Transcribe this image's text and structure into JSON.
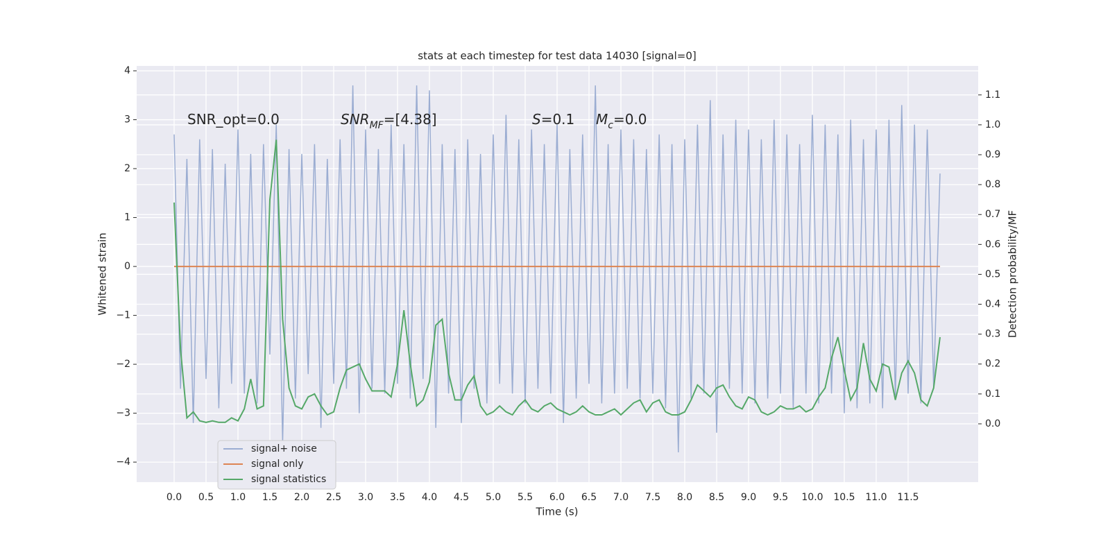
{
  "chart_data": {
    "type": "line",
    "title": "stats at each timestep for test data 14030 [signal=0]",
    "x_label": "Time (s)",
    "y_label": "Whitened strain",
    "y2_label": "Detection probability/MF",
    "annotations": [
      {
        "parts": [
          {
            "text": "SNR_opt=0.0"
          }
        ]
      },
      {
        "parts": [
          {
            "text": "SNR",
            "style": "italic"
          },
          {
            "text": "MF",
            "style": "italic-sub"
          },
          {
            "text": "=[4.38]"
          }
        ]
      },
      {
        "parts": [
          {
            "text": "S",
            "style": "italic"
          },
          {
            "text": "=0.1"
          }
        ]
      },
      {
        "parts": [
          {
            "text": "M",
            "style": "italic"
          },
          {
            "text": "c",
            "style": "italic-sub"
          },
          {
            "text": "=0.0"
          }
        ]
      }
    ],
    "x": [
      0.0,
      0.1,
      0.2,
      0.3,
      0.4,
      0.5,
      0.6,
      0.7,
      0.8,
      0.9,
      1.0,
      1.1,
      1.2,
      1.3,
      1.4,
      1.5,
      1.6,
      1.7,
      1.8,
      1.9,
      2.0,
      2.1,
      2.2,
      2.3,
      2.4,
      2.5,
      2.6,
      2.7,
      2.8,
      2.9,
      3.0,
      3.1,
      3.2,
      3.3,
      3.4,
      3.5,
      3.6,
      3.7,
      3.8,
      3.9,
      4.0,
      4.1,
      4.2,
      4.3,
      4.4,
      4.5,
      4.6,
      4.7,
      4.8,
      4.9,
      5.0,
      5.1,
      5.2,
      5.3,
      5.4,
      5.5,
      5.6,
      5.7,
      5.8,
      5.9,
      6.0,
      6.1,
      6.2,
      6.3,
      6.4,
      6.5,
      6.6,
      6.7,
      6.8,
      6.9,
      7.0,
      7.1,
      7.2,
      7.3,
      7.4,
      7.5,
      7.6,
      7.7,
      7.8,
      7.9,
      8.0,
      8.1,
      8.2,
      8.3,
      8.4,
      8.5,
      8.6,
      8.7,
      8.8,
      8.9,
      9.0,
      9.1,
      9.2,
      9.3,
      9.4,
      9.5,
      9.6,
      9.7,
      9.8,
      9.9,
      10.0,
      10.1,
      10.2,
      10.3,
      10.4,
      10.5,
      10.6,
      10.7,
      10.8,
      10.9,
      11.0,
      11.1,
      11.2,
      11.3,
      11.4,
      11.5,
      11.6,
      11.7,
      11.8,
      11.9,
      12.0
    ],
    "series": [
      {
        "name": "signal+ noise",
        "color": "#9badd2",
        "values": [
          2.7,
          -2.5,
          2.2,
          -3.2,
          2.6,
          -2.3,
          2.4,
          -2.9,
          2.1,
          -2.4,
          2.8,
          -2.6,
          2.3,
          -2.8,
          2.5,
          -1.8,
          2.9,
          -3.6,
          2.4,
          -2.7,
          2.3,
          -2.2,
          2.5,
          -3.3,
          2.2,
          -2.4,
          2.6,
          -2.5,
          3.7,
          -3.0,
          2.8,
          -2.5,
          2.4,
          -2.6,
          2.9,
          -2.4,
          2.5,
          -2.7,
          3.7,
          -2.3,
          3.6,
          -3.3,
          2.5,
          -2.6,
          2.4,
          -3.2,
          2.6,
          -2.5,
          2.3,
          -2.8,
          2.7,
          -2.4,
          3.1,
          -2.6,
          2.6,
          -2.8,
          2.8,
          -2.5,
          2.5,
          -2.6,
          2.9,
          -3.2,
          2.4,
          -2.7,
          2.7,
          -2.4,
          3.7,
          -2.8,
          2.5,
          -2.6,
          2.8,
          -2.5,
          2.6,
          -2.7,
          2.4,
          -2.6,
          2.7,
          -2.9,
          2.5,
          -3.8,
          2.6,
          -2.7,
          2.9,
          -2.6,
          3.4,
          -3.4,
          2.7,
          -2.5,
          3.0,
          -2.6,
          2.8,
          -2.8,
          2.6,
          -2.7,
          3.0,
          -2.6,
          2.7,
          -2.9,
          2.5,
          -2.6,
          3.1,
          -2.8,
          2.9,
          -2.6,
          2.7,
          -3.0,
          3.0,
          -2.9,
          2.6,
          -2.8,
          2.8,
          -2.9,
          3.0,
          -2.7,
          3.3,
          -2.6,
          2.9,
          -2.8,
          2.8,
          -2.5,
          1.9
        ]
      },
      {
        "name": "signal only",
        "color": "#dd8452",
        "values": [
          0,
          0,
          0,
          0,
          0,
          0,
          0,
          0,
          0,
          0,
          0,
          0,
          0,
          0,
          0,
          0,
          0,
          0,
          0,
          0,
          0,
          0,
          0,
          0,
          0,
          0,
          0,
          0,
          0,
          0,
          0,
          0,
          0,
          0,
          0,
          0,
          0,
          0,
          0,
          0,
          0,
          0,
          0,
          0,
          0,
          0,
          0,
          0,
          0,
          0,
          0,
          0,
          0,
          0,
          0,
          0,
          0,
          0,
          0,
          0,
          0,
          0,
          0,
          0,
          0,
          0,
          0,
          0,
          0,
          0,
          0,
          0,
          0,
          0,
          0,
          0,
          0,
          0,
          0,
          0,
          0,
          0,
          0,
          0,
          0,
          0,
          0,
          0,
          0,
          0,
          0,
          0,
          0,
          0,
          0,
          0,
          0,
          0,
          0,
          0,
          0,
          0,
          0,
          0,
          0,
          0,
          0,
          0,
          0,
          0,
          0,
          0,
          0,
          0,
          0,
          0,
          0,
          0,
          0,
          0,
          0
        ]
      },
      {
        "name": "signal statistics",
        "color": "#55a868",
        "axis": "y2",
        "values": [
          0.74,
          0.25,
          0.02,
          0.04,
          0.01,
          0.005,
          0.01,
          0.005,
          0.005,
          0.02,
          0.01,
          0.05,
          0.15,
          0.05,
          0.06,
          0.75,
          0.95,
          0.35,
          0.12,
          0.06,
          0.05,
          0.09,
          0.1,
          0.06,
          0.03,
          0.04,
          0.12,
          0.18,
          0.19,
          0.2,
          0.15,
          0.11,
          0.11,
          0.11,
          0.09,
          0.2,
          0.38,
          0.2,
          0.06,
          0.08,
          0.14,
          0.33,
          0.35,
          0.17,
          0.08,
          0.08,
          0.13,
          0.16,
          0.06,
          0.03,
          0.04,
          0.06,
          0.04,
          0.03,
          0.06,
          0.08,
          0.05,
          0.04,
          0.06,
          0.07,
          0.05,
          0.04,
          0.03,
          0.04,
          0.06,
          0.04,
          0.03,
          0.03,
          0.04,
          0.05,
          0.03,
          0.05,
          0.07,
          0.08,
          0.04,
          0.07,
          0.08,
          0.04,
          0.03,
          0.03,
          0.04,
          0.08,
          0.13,
          0.11,
          0.09,
          0.12,
          0.13,
          0.09,
          0.06,
          0.05,
          0.09,
          0.08,
          0.04,
          0.03,
          0.04,
          0.06,
          0.05,
          0.05,
          0.06,
          0.04,
          0.05,
          0.09,
          0.12,
          0.22,
          0.29,
          0.18,
          0.08,
          0.12,
          0.27,
          0.15,
          0.11,
          0.2,
          0.19,
          0.08,
          0.17,
          0.21,
          0.17,
          0.08,
          0.06,
          0.12,
          0.29
        ]
      }
    ],
    "xlim": [
      -0.587,
      12.598
    ],
    "ylim": [
      -4.41,
      4.1
    ],
    "y2lim": [
      -0.195,
      1.197
    ],
    "xticks": [
      {
        "value": 0,
        "label": "0.0"
      },
      {
        "value": 0.5,
        "label": "0.5"
      },
      {
        "value": 1,
        "label": "1.0"
      },
      {
        "value": 1.5,
        "label": "1.5"
      },
      {
        "value": 2,
        "label": "2.0"
      },
      {
        "value": 2.5,
        "label": "2.5"
      },
      {
        "value": 3,
        "label": "3.0"
      },
      {
        "value": 3.5,
        "label": "3.5"
      },
      {
        "value": 4,
        "label": "4.0"
      },
      {
        "value": 4.5,
        "label": "4.5"
      },
      {
        "value": 5,
        "label": "5.0"
      },
      {
        "value": 5.5,
        "label": "5.5"
      },
      {
        "value": 6,
        "label": "6.0"
      },
      {
        "value": 6.5,
        "label": "6.5"
      },
      {
        "value": 7,
        "label": "7.0"
      },
      {
        "value": 7.5,
        "label": "7.5"
      },
      {
        "value": 8,
        "label": "8.0"
      },
      {
        "value": 8.5,
        "label": "8.5"
      },
      {
        "value": 9,
        "label": "9.0"
      },
      {
        "value": 9.5,
        "label": "9.5"
      },
      {
        "value": 10,
        "label": "10.0"
      },
      {
        "value": 10.5,
        "label": "10.5"
      },
      {
        "value": 11,
        "label": "11.0"
      },
      {
        "value": 11.5,
        "label": "11.5"
      }
    ],
    "yticks": [
      {
        "value": -4,
        "label": "−4"
      },
      {
        "value": -3,
        "label": "−3"
      },
      {
        "value": -2,
        "label": "−2"
      },
      {
        "value": -1,
        "label": "−1"
      },
      0,
      1,
      2,
      3,
      4
    ],
    "y2ticks": [
      {
        "value": 0,
        "label": "0.0"
      },
      {
        "value": 0.1,
        "label": "0.1"
      },
      {
        "value": 0.2,
        "label": "0.2"
      },
      {
        "value": 0.3,
        "label": "0.3"
      },
      {
        "value": 0.4,
        "label": "0.4"
      },
      {
        "value": 0.5,
        "label": "0.5"
      },
      {
        "value": 0.6,
        "label": "0.6"
      },
      {
        "value": 0.7,
        "label": "0.7"
      },
      {
        "value": 0.8,
        "label": "0.8"
      },
      {
        "value": 0.9,
        "label": "0.9"
      },
      {
        "value": 1.0,
        "label": "1.0"
      },
      {
        "value": 1.1,
        "label": "1.1"
      }
    ],
    "grid": true,
    "legend": "lower left"
  }
}
